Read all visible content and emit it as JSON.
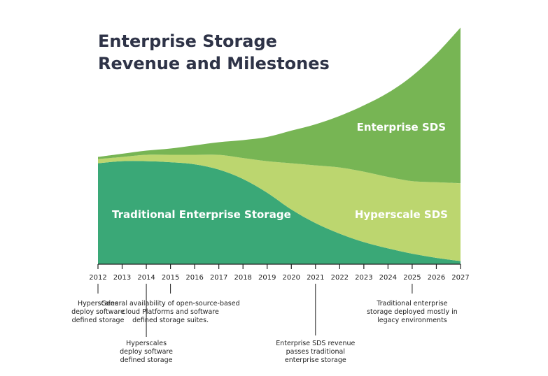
{
  "chart_data": {
    "type": "area",
    "title_lines": [
      "Enterprise Storage",
      "Revenue and Milestones"
    ],
    "x": [
      "2012",
      "2013",
      "2014",
      "2015",
      "2016",
      "2017",
      "2018",
      "2019",
      "2020",
      "2021",
      "2022",
      "2023",
      "2024",
      "2025",
      "2026",
      "2027"
    ],
    "series": [
      {
        "name": "Traditional Enterprise Storage",
        "color": "#3aa877",
        "values": [
          9.6,
          9.8,
          9.8,
          9.7,
          9.5,
          9.0,
          8.1,
          6.8,
          5.2,
          3.9,
          2.9,
          2.1,
          1.5,
          1.0,
          0.6,
          0.3
        ]
      },
      {
        "name": "Hyperscale SDS",
        "color": "#bcd66f",
        "values": [
          0.4,
          0.4,
          0.6,
          0.7,
          0.9,
          1.4,
          2.0,
          3.0,
          4.4,
          5.5,
          6.3,
          6.7,
          6.8,
          6.9,
          7.2,
          7.4
        ]
      },
      {
        "name": "Enterprise SDS",
        "color": "#77b554",
        "values": [
          0.2,
          0.3,
          0.4,
          0.6,
          0.9,
          1.2,
          1.7,
          2.3,
          3.1,
          3.9,
          4.9,
          6.3,
          8.0,
          10.0,
          12.2,
          14.8
        ]
      }
    ],
    "stacked": true,
    "ylim": [
      0,
      23
    ],
    "grid": false,
    "legend": "inline labels",
    "annotations": [
      {
        "year": "2012",
        "lines": [
          "Hyperscales",
          "deploy software",
          "defined storage"
        ]
      },
      {
        "year": "2014",
        "lines": [
          "Hyperscales",
          "deploy software",
          "defined storage"
        ]
      },
      {
        "year": "2015",
        "lines": [
          "General availability of open-source-based",
          "cloud Platforms and software",
          "defined storage suites."
        ]
      },
      {
        "year": "2021",
        "lines": [
          "Enterprise SDS revenue",
          "passes traditional",
          "enterprise storage"
        ]
      },
      {
        "year": "2025",
        "lines": [
          "Traditional enterprise",
          "storage deployed mostly in",
          "legacy environments"
        ]
      }
    ]
  }
}
